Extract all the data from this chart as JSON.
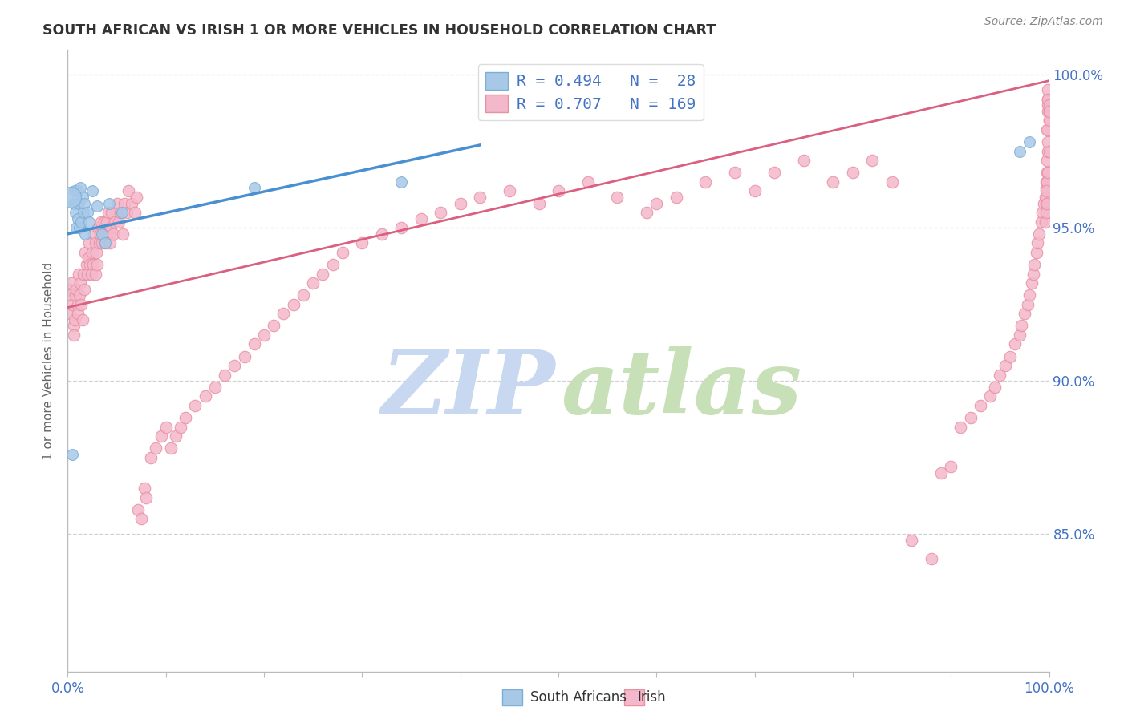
{
  "title": "SOUTH AFRICAN VS IRISH 1 OR MORE VEHICLES IN HOUSEHOLD CORRELATION CHART",
  "source": "Source: ZipAtlas.com",
  "ylabel": "1 or more Vehicles in Household",
  "legend_r_sa": "R = 0.494",
  "legend_n_sa": "N =  28",
  "legend_r_ir": "R = 0.707",
  "legend_n_ir": "N = 169",
  "sa_color": "#a8c8e8",
  "sa_edge_color": "#7bafd4",
  "ir_color": "#f4b8cc",
  "ir_edge_color": "#e8909e",
  "sa_line_color": "#4a90d0",
  "ir_line_color": "#d96080",
  "legend_text_color": "#4472c4",
  "right_tick_color": "#4472c4",
  "watermark_zip_color": "#c8d8f0",
  "watermark_atlas_color": "#c8e0b8",
  "background_color": "#ffffff",
  "grid_color": "#d0d0d0",
  "title_color": "#333333",
  "source_color": "#888888",
  "ylabel_color": "#666666",
  "sa_trendline_x0": 0.0,
  "sa_trendline_y0": 0.948,
  "sa_trendline_x1": 0.42,
  "sa_trendline_y1": 0.977,
  "ir_trendline_x0": 0.0,
  "ir_trendline_y0": 0.924,
  "ir_trendline_x1": 1.0,
  "ir_trendline_y1": 0.998,
  "ylim_low": 0.805,
  "ylim_high": 1.008,
  "xlim_low": 0.0,
  "xlim_high": 1.0,
  "sa_scatter_x": [
    0.003,
    0.005,
    0.006,
    0.007,
    0.008,
    0.009,
    0.01,
    0.01,
    0.011,
    0.012,
    0.013,
    0.014,
    0.015,
    0.016,
    0.017,
    0.018,
    0.02,
    0.022,
    0.025,
    0.03,
    0.035,
    0.038,
    0.042,
    0.055,
    0.19,
    0.34,
    0.97,
    0.98
  ],
  "sa_scatter_y": [
    0.96,
    0.876,
    0.958,
    0.962,
    0.955,
    0.95,
    0.953,
    0.962,
    0.958,
    0.95,
    0.963,
    0.952,
    0.96,
    0.955,
    0.958,
    0.948,
    0.955,
    0.952,
    0.962,
    0.957,
    0.948,
    0.945,
    0.958,
    0.955,
    0.963,
    0.965,
    0.975,
    0.978
  ],
  "ir_scatter_x": [
    0.001,
    0.002,
    0.003,
    0.004,
    0.005,
    0.006,
    0.006,
    0.007,
    0.008,
    0.009,
    0.01,
    0.01,
    0.011,
    0.012,
    0.013,
    0.014,
    0.015,
    0.016,
    0.017,
    0.018,
    0.019,
    0.02,
    0.021,
    0.022,
    0.023,
    0.024,
    0.025,
    0.026,
    0.027,
    0.028,
    0.028,
    0.029,
    0.03,
    0.031,
    0.032,
    0.033,
    0.034,
    0.035,
    0.036,
    0.037,
    0.038,
    0.039,
    0.04,
    0.041,
    0.042,
    0.043,
    0.044,
    0.045,
    0.046,
    0.048,
    0.05,
    0.052,
    0.054,
    0.056,
    0.058,
    0.06,
    0.062,
    0.065,
    0.068,
    0.07,
    0.072,
    0.075,
    0.078,
    0.08,
    0.085,
    0.09,
    0.095,
    0.1,
    0.105,
    0.11,
    0.115,
    0.12,
    0.13,
    0.14,
    0.15,
    0.16,
    0.17,
    0.18,
    0.19,
    0.2,
    0.21,
    0.22,
    0.23,
    0.24,
    0.25,
    0.26,
    0.27,
    0.28,
    0.3,
    0.32,
    0.34,
    0.36,
    0.38,
    0.4,
    0.42,
    0.45,
    0.48,
    0.5,
    0.53,
    0.56,
    0.59,
    0.6,
    0.62,
    0.65,
    0.68,
    0.7,
    0.72,
    0.75,
    0.78,
    0.8,
    0.82,
    0.84,
    0.86,
    0.88,
    0.89,
    0.9,
    0.91,
    0.92,
    0.93,
    0.94,
    0.945,
    0.95,
    0.955,
    0.96,
    0.965,
    0.97,
    0.972,
    0.975,
    0.978,
    0.98,
    0.982,
    0.984,
    0.985,
    0.987,
    0.988,
    0.99,
    0.992,
    0.993,
    0.995,
    0.996,
    0.997,
    0.997,
    0.998,
    0.998,
    0.999,
    0.999,
    0.999,
    1.0,
    1.0,
    1.0,
    0.998,
    0.999,
    0.999,
    0.999,
    0.999,
    0.999,
    1.0,
    1.0,
    1.0,
    1.0,
    1.0,
    0.998,
    0.997,
    0.999,
    0.996,
    0.997,
    0.997,
    0.997,
    0.998
  ],
  "ir_scatter_y": [
    0.93,
    0.922,
    0.928,
    0.932,
    0.925,
    0.918,
    0.915,
    0.92,
    0.928,
    0.93,
    0.925,
    0.922,
    0.935,
    0.928,
    0.932,
    0.925,
    0.92,
    0.935,
    0.93,
    0.942,
    0.938,
    0.935,
    0.94,
    0.945,
    0.938,
    0.935,
    0.942,
    0.938,
    0.948,
    0.945,
    0.935,
    0.942,
    0.938,
    0.95,
    0.945,
    0.948,
    0.952,
    0.945,
    0.948,
    0.952,
    0.945,
    0.948,
    0.952,
    0.955,
    0.948,
    0.945,
    0.95,
    0.955,
    0.948,
    0.952,
    0.958,
    0.952,
    0.955,
    0.948,
    0.958,
    0.955,
    0.962,
    0.958,
    0.955,
    0.96,
    0.858,
    0.855,
    0.865,
    0.862,
    0.875,
    0.878,
    0.882,
    0.885,
    0.878,
    0.882,
    0.885,
    0.888,
    0.892,
    0.895,
    0.898,
    0.902,
    0.905,
    0.908,
    0.912,
    0.915,
    0.918,
    0.922,
    0.925,
    0.928,
    0.932,
    0.935,
    0.938,
    0.942,
    0.945,
    0.948,
    0.95,
    0.953,
    0.955,
    0.958,
    0.96,
    0.962,
    0.958,
    0.962,
    0.965,
    0.96,
    0.955,
    0.958,
    0.96,
    0.965,
    0.968,
    0.962,
    0.968,
    0.972,
    0.965,
    0.968,
    0.972,
    0.965,
    0.848,
    0.842,
    0.87,
    0.872,
    0.885,
    0.888,
    0.892,
    0.895,
    0.898,
    0.902,
    0.905,
    0.908,
    0.912,
    0.915,
    0.918,
    0.922,
    0.925,
    0.928,
    0.932,
    0.935,
    0.938,
    0.942,
    0.945,
    0.948,
    0.952,
    0.955,
    0.958,
    0.96,
    0.963,
    0.965,
    0.968,
    0.972,
    0.975,
    0.978,
    0.982,
    0.985,
    0.988,
    0.99,
    0.982,
    0.988,
    0.992,
    0.995,
    0.99,
    0.992,
    0.988,
    0.99,
    0.985,
    0.988,
    0.975,
    0.965,
    0.958,
    0.968,
    0.952,
    0.955,
    0.96,
    0.962,
    0.958
  ]
}
